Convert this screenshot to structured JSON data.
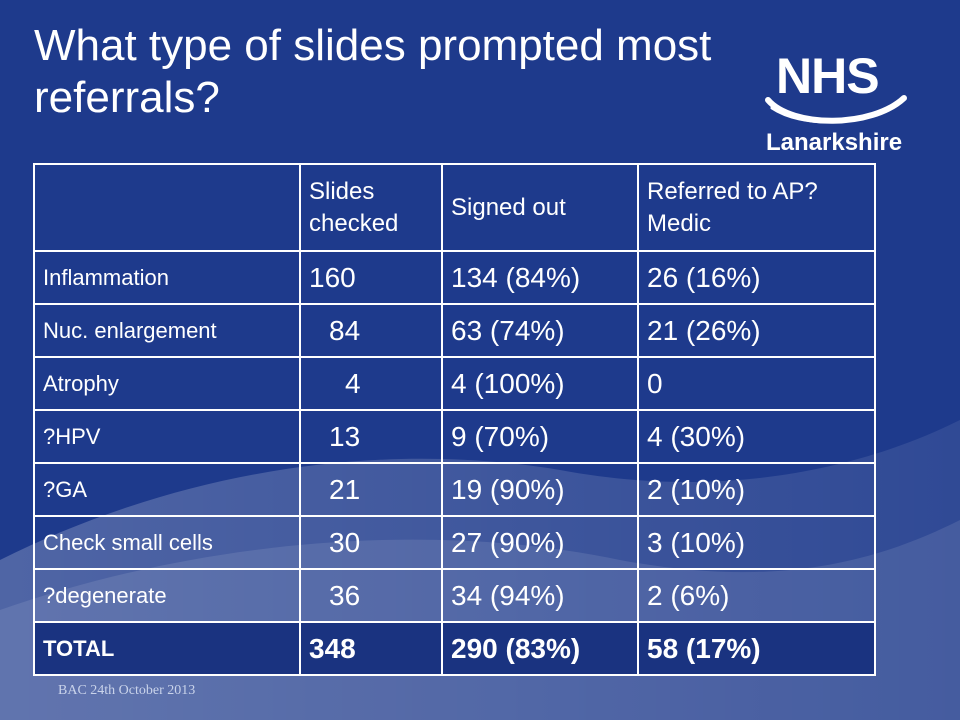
{
  "slide": {
    "title": "What type of slides prompted most referrals?",
    "logo": {
      "name": "NHS",
      "region": "Lanarkshire"
    },
    "footer": "BAC 24th October 2013"
  },
  "table": {
    "headers": [
      "",
      "Slides checked",
      "Signed out",
      "Referred to AP?Medic"
    ],
    "rows": [
      {
        "label": "Inflammation",
        "checked": "160",
        "signed": "134 (84%)",
        "referred": "26 (16%)"
      },
      {
        "label": "Nuc. enlargement",
        "checked": "84",
        "signed": "63 (74%)",
        "referred": "21 (26%)"
      },
      {
        "label": "Atrophy",
        "checked": "4",
        "signed": "4 (100%)",
        "referred": "0"
      },
      {
        "label": "?HPV",
        "checked": "13",
        "signed": "9 (70%)",
        "referred": "4 (30%)"
      },
      {
        "label": "?GA",
        "checked": "21",
        "signed": "19 (90%)",
        "referred": "2 (10%)"
      },
      {
        "label": "Check small cells",
        "checked": "30",
        "signed": "27 (90%)",
        "referred": "3 (10%)"
      },
      {
        "label": "?degenerate",
        "checked": "36",
        "signed": "34 (94%)",
        "referred": "2 (6%)"
      }
    ],
    "total": {
      "label": "TOTAL",
      "checked": "348",
      "signed": "290 (83%)",
      "referred": "58 (17%)"
    }
  }
}
